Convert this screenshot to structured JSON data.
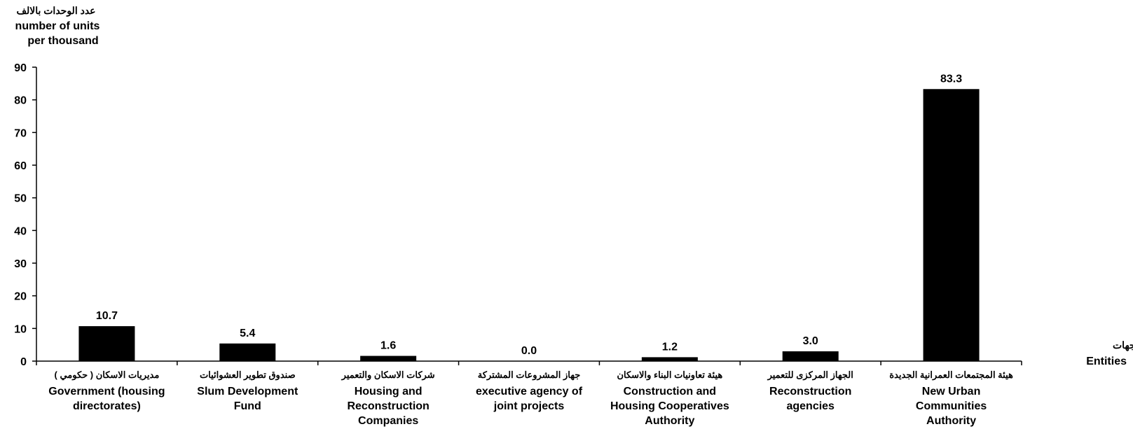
{
  "chart_data": {
    "type": "bar",
    "ylabel_ar": "عدد الوحدات بالالف",
    "ylabel_lines": [
      "number of units",
      "per thousand"
    ],
    "xlabel_ar": "الجهات",
    "xlabel": "Entities",
    "ylim": [
      0,
      90
    ],
    "yticks": [
      0,
      10,
      20,
      30,
      40,
      50,
      60,
      70,
      80,
      90
    ],
    "grid": false,
    "bar_color": "#000000",
    "categories": [
      {
        "ar": "مديريات الاسكان ( حكومي )",
        "en": [
          "Government (housing",
          "directorates)"
        ]
      },
      {
        "ar": "صندوق تطوير العشوائيات",
        "en": [
          "Slum Development",
          "Fund"
        ]
      },
      {
        "ar": "شركات الاسكان والتعمير",
        "en": [
          "Housing and",
          "Reconstruction",
          "Companies"
        ]
      },
      {
        "ar": "جهاز المشروعات المشتركة",
        "en": [
          "executive agency of",
          "joint projects"
        ]
      },
      {
        "ar": "هيئة تعاونيات البناء والاسكان",
        "en": [
          "Construction and",
          "Housing Cooperatives",
          "Authority"
        ]
      },
      {
        "ar": "الجهاز المركزى للتعمير",
        "en": [
          "Reconstruction",
          "agencies"
        ]
      },
      {
        "ar": "هيئة المجتمعات العمرانية الجديدة",
        "en": [
          "New Urban",
          "Communities",
          "Authority"
        ]
      }
    ],
    "values": [
      10.7,
      5.4,
      1.6,
      0.0,
      1.2,
      3.0,
      83.3
    ],
    "value_labels": [
      "10.7",
      "5.4",
      "1.6",
      "0.0",
      "1.2",
      "3.0",
      "83.3"
    ]
  }
}
